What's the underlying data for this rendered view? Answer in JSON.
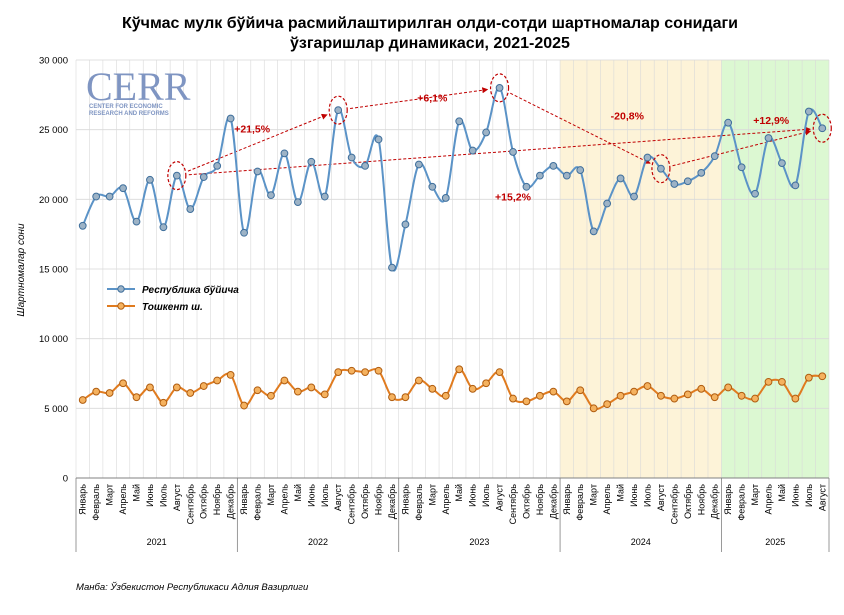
{
  "chart_data": {
    "type": "line",
    "title_line1": "Кўчмас мулк бўйича расмийлаштирилган олди-сотди шартномалар сонидаги",
    "title_line2": "ўзгаришлар динамикаси, 2021-2025",
    "ylabel": "Шартномалар сони",
    "ylim": [
      0,
      30000
    ],
    "yticks": [
      "0",
      "5 000",
      "10 000",
      "15 000",
      "20 000",
      "25 000",
      "30 000"
    ],
    "ytick_values": [
      0,
      5000,
      10000,
      15000,
      20000,
      25000,
      30000
    ],
    "grid": true,
    "legend_position": "left",
    "categories": [
      "Январь",
      "Февраль",
      "Март",
      "Апрель",
      "Май",
      "Июнь",
      "Июль",
      "Август",
      "Сентябрь",
      "Октябрь",
      "Ноябрь",
      "Декабрь",
      "Январь",
      "Февраль",
      "Март",
      "Апрель",
      "Май",
      "Июнь",
      "Июль",
      "Август",
      "Сентябрь",
      "Октябрь",
      "Ноябрь",
      "Декабрь",
      "Январь",
      "Февраль",
      "Март",
      "Апрель",
      "Май",
      "Июнь",
      "Июль",
      "Август",
      "Сентябрь",
      "Октябрь",
      "Ноябрь",
      "Декабрь",
      "Январь",
      "Февраль",
      "Март",
      "Апрель",
      "Май",
      "Июнь",
      "Июль",
      "Август",
      "Сентябрь",
      "Октябрь",
      "Ноябрь",
      "Декабрь",
      "Январь",
      "Февраль",
      "Март",
      "Апрель",
      "Май",
      "Июнь",
      "Июль",
      "Август"
    ],
    "years": [
      {
        "label": "2021",
        "start": 0,
        "count": 12
      },
      {
        "label": "2022",
        "start": 12,
        "count": 12
      },
      {
        "label": "2023",
        "start": 24,
        "count": 12
      },
      {
        "label": "2024",
        "start": 36,
        "count": 12
      },
      {
        "label": "2025",
        "start": 48,
        "count": 8
      }
    ],
    "shaded_periods": [
      {
        "start": 36,
        "end": 47,
        "color": "#fdf3d8"
      },
      {
        "start": 48,
        "end": 55,
        "color": "#dcf8d2"
      }
    ],
    "series": [
      {
        "name": "Республика бўйича",
        "color": "#5b93c7",
        "marker_fill": "#9db3c6",
        "values": [
          18100,
          20200,
          20200,
          20800,
          18400,
          21400,
          18000,
          21700,
          19300,
          21600,
          22400,
          25800,
          17600,
          22000,
          20300,
          23300,
          19800,
          22700,
          20200,
          26400,
          23000,
          22400,
          24300,
          15100,
          18200,
          22500,
          20900,
          20100,
          25600,
          23500,
          24800,
          28000,
          23400,
          20900,
          21700,
          22400,
          21700,
          22100,
          17700,
          19700,
          21500,
          20200,
          23000,
          22200,
          21100,
          21300,
          21900,
          23100,
          25500,
          22300,
          20400,
          24400,
          22600,
          21000,
          26300,
          25100
        ]
      },
      {
        "name": "Тошкент ш.",
        "color": "#e07b1f",
        "marker_fill": "#f5b25f",
        "values": [
          5600,
          6200,
          6100,
          6800,
          5800,
          6500,
          5400,
          6500,
          6100,
          6600,
          7000,
          7400,
          5200,
          6300,
          5900,
          7000,
          6200,
          6500,
          6000,
          7600,
          7700,
          7600,
          7700,
          5800,
          5800,
          7000,
          6400,
          5900,
          7800,
          6400,
          6800,
          7600,
          5700,
          5500,
          5900,
          6200,
          5500,
          6300,
          5000,
          5300,
          5900,
          6200,
          6600,
          5900,
          5700,
          6000,
          6400,
          5800,
          6500,
          5900,
          5700,
          6900,
          6900,
          5700,
          7200,
          7300
        ]
      }
    ],
    "annotations": [
      {
        "text": "+21,5%",
        "x": 12.6,
        "y": 25100
      },
      {
        "text": "+6,1%",
        "x": 26.0,
        "y": 27300
      },
      {
        "text": "-20,8%",
        "x": 40.5,
        "y": 26000
      },
      {
        "text": "+12,9%",
        "x": 51.2,
        "y": 25700
      },
      {
        "text": "+15,2%",
        "x": 32.0,
        "y": 20200
      }
    ],
    "highlight_points": [
      7,
      19,
      31,
      43,
      55
    ],
    "arrows": [
      {
        "from": 7,
        "to": 19
      },
      {
        "from": 19,
        "to": 31
      },
      {
        "from": 31,
        "to": 43
      },
      {
        "from": 43,
        "to": 55
      },
      {
        "from": 7,
        "to": 55
      }
    ],
    "source": "Манба: Ўзбекистон Республикаси Адлия Вазирлиги"
  },
  "logo": {
    "text": "CERR",
    "subtitle_line1": "CENTER FOR ECONOMIC",
    "subtitle_line2": "RESEARCH AND REFORMS"
  },
  "colors": {
    "arrow": "#c00000",
    "grid": "#d9d9d9",
    "axis": "#808080"
  }
}
